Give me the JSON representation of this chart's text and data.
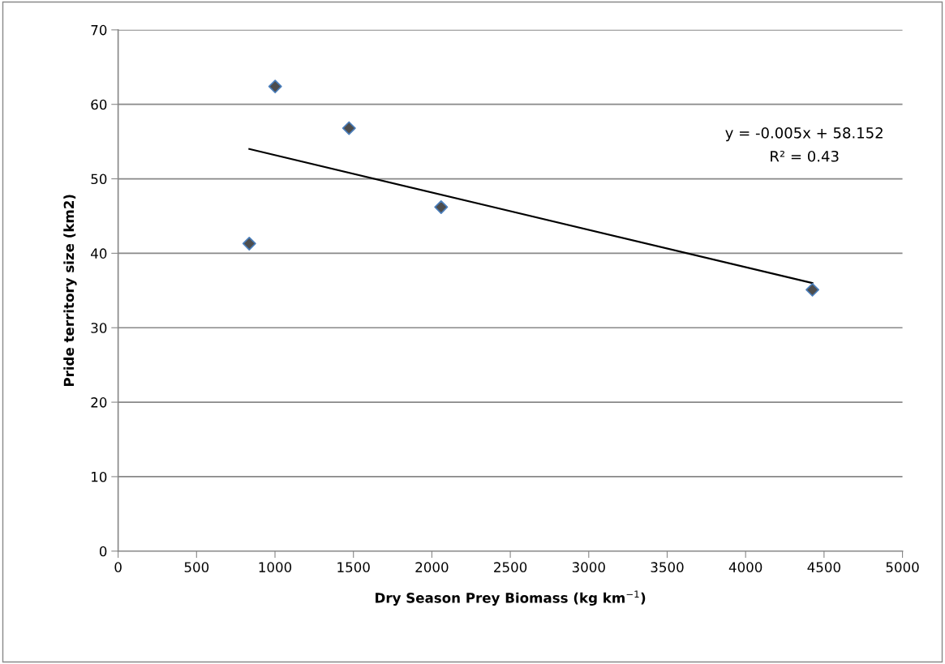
{
  "chart_data": {
    "type": "scatter",
    "xlabel": "Dry Season Prey Biomass (kg km$^{−1}$)",
    "ylabel": "Pride territory size (km2)",
    "xlim": [
      0,
      5000
    ],
    "xticks": [
      0,
      500,
      1000,
      1500,
      2000,
      2500,
      3000,
      3500,
      4000,
      4500,
      5000
    ],
    "ylim": [
      0,
      70
    ],
    "yticks": [
      0,
      10,
      20,
      30,
      40,
      50,
      60,
      70
    ],
    "grid": "y",
    "marker": "diamond",
    "series": [
      {
        "color": "#4d4d4d",
        "x": [
          836,
          1001,
          1472,
          2059,
          4426
        ],
        "values": [
          41.3,
          62.4,
          56.8,
          46.2,
          35.1
        ]
      },
      {
        "type": "line",
        "color": "#000000",
        "x": [
          836,
          4426
        ],
        "values": [
          54.0,
          36.0
        ],
        "marker": "none"
      }
    ],
    "annotations": [
      "y = -0.005x + 58.152",
      "R² = 0.43"
    ]
  }
}
